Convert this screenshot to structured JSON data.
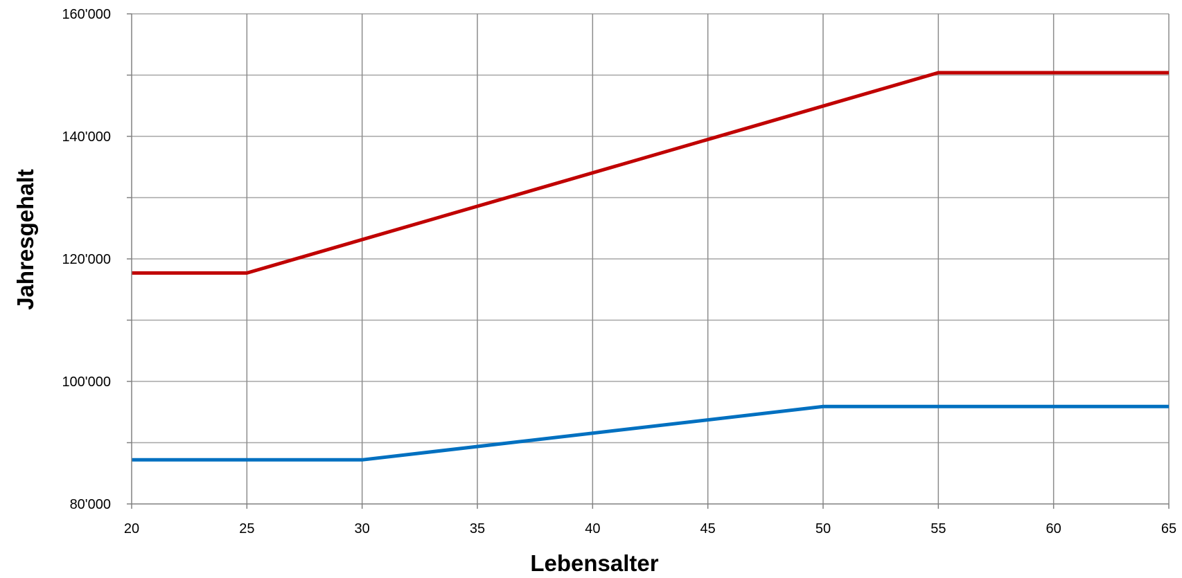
{
  "chart_data": {
    "type": "line",
    "title": "",
    "xlabel": "Lebensalter",
    "ylabel": "Jahresgehalt",
    "xlim": [
      20,
      65
    ],
    "ylim": [
      80000,
      160000
    ],
    "x_ticks": [
      20,
      25,
      30,
      35,
      40,
      45,
      50,
      55,
      60,
      65
    ],
    "x_tick_labels": [
      "20",
      "25",
      "30",
      "35",
      "40",
      "45",
      "50",
      "55",
      "60",
      "65"
    ],
    "y_ticks": [
      80000,
      100000,
      120000,
      140000,
      160000
    ],
    "y_tick_labels": [
      "80'000",
      "100'000",
      "120'000",
      "140'000",
      "160'000"
    ],
    "y_minor_gridlines": [
      90000,
      110000,
      130000,
      150000
    ],
    "grid": true,
    "legend": "none",
    "series": [
      {
        "color": "#C00000",
        "points": [
          [
            20,
            117700
          ],
          [
            25,
            117700
          ],
          [
            55,
            150400
          ],
          [
            65,
            150400
          ]
        ]
      },
      {
        "color": "#0070C0",
        "points": [
          [
            20,
            87200
          ],
          [
            30,
            87200
          ],
          [
            50,
            95900
          ],
          [
            65,
            95900
          ]
        ]
      }
    ]
  }
}
